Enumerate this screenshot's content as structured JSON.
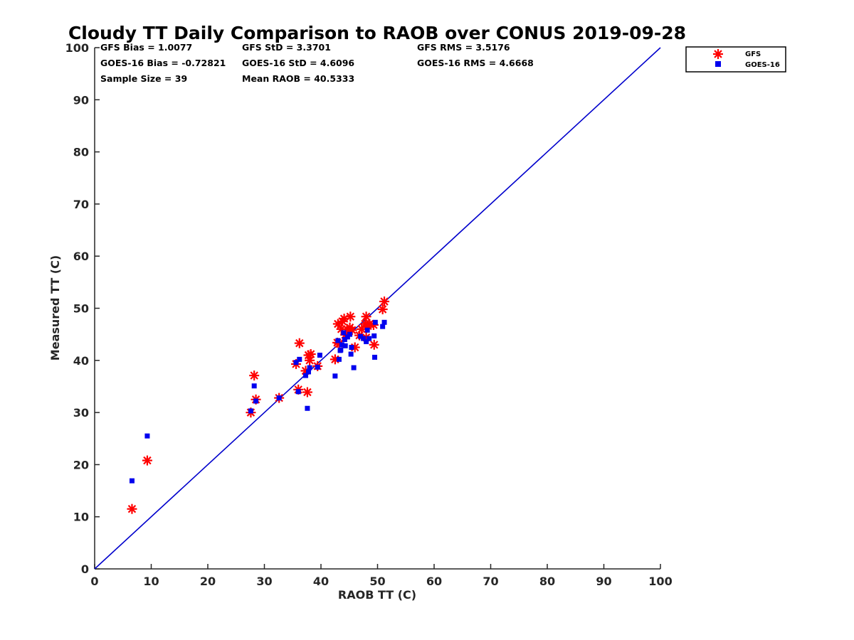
{
  "chart_data": {
    "type": "scatter",
    "title": "Cloudy TT Daily Comparison to RAOB over CONUS 2019-09-28",
    "xlabel": "RAOB TT (C)",
    "ylabel": "Measured TT (C)",
    "xlim": [
      0,
      100
    ],
    "ylim": [
      0,
      100
    ],
    "xticks": [
      "0",
      "10",
      "20",
      "30",
      "40",
      "50",
      "60",
      "70",
      "80",
      "90",
      "100"
    ],
    "yticks": [
      "0",
      "10",
      "20",
      "30",
      "40",
      "50",
      "60",
      "70",
      "80",
      "90",
      "100"
    ],
    "grid": false,
    "legend_position": "top-right outside plot",
    "reference_line": {
      "from": [
        0,
        0
      ],
      "to": [
        100,
        100
      ],
      "color": "#0000cc"
    },
    "stats": [
      [
        "GFS Bias = 1.0077",
        "GFS StD = 3.3701",
        "GFS RMS = 3.5176"
      ],
      [
        "GOES-16 Bias = -0.72821",
        "GOES-16 StD = 4.6096",
        "GOES-16 RMS = 4.6668"
      ],
      [
        "Sample Size = 39",
        "Mean RAOB = 40.5333",
        ""
      ]
    ],
    "series": [
      {
        "name": "GFS",
        "marker": "asterisk",
        "color": "#ff0000",
        "points": [
          [
            6.6,
            11.5
          ],
          [
            9.3,
            20.8
          ],
          [
            27.6,
            30.0
          ],
          [
            28.2,
            37.1
          ],
          [
            28.5,
            32.5
          ],
          [
            32.6,
            32.8
          ],
          [
            35.6,
            39.3
          ],
          [
            36.0,
            34.4
          ],
          [
            36.2,
            43.3
          ],
          [
            37.3,
            38.0
          ],
          [
            37.6,
            33.9
          ],
          [
            37.8,
            41.0
          ],
          [
            38.0,
            40.0
          ],
          [
            38.2,
            41.2
          ],
          [
            39.4,
            38.9
          ],
          [
            42.5,
            40.2
          ],
          [
            43.0,
            47.0
          ],
          [
            43.2,
            43.2
          ],
          [
            43.6,
            46.0
          ],
          [
            43.8,
            47.5
          ],
          [
            44.1,
            48.0
          ],
          [
            44.6,
            46.0
          ],
          [
            45.1,
            46.3
          ],
          [
            45.2,
            48.4
          ],
          [
            45.5,
            45.8
          ],
          [
            46.0,
            42.5
          ],
          [
            47.2,
            46.0
          ],
          [
            47.8,
            47.0
          ],
          [
            48.0,
            48.4
          ],
          [
            48.3,
            46.6
          ],
          [
            48.6,
            47.0
          ],
          [
            49.3,
            46.8
          ],
          [
            49.4,
            43.0
          ],
          [
            50.9,
            49.8
          ],
          [
            51.2,
            51.3
          ],
          [
            44.3,
            44.9
          ],
          [
            42.9,
            43.4
          ],
          [
            46.8,
            44.8
          ],
          [
            48.0,
            44.4
          ]
        ]
      },
      {
        "name": "GOES-16",
        "marker": "square",
        "color": "#0000ee",
        "points": [
          [
            6.6,
            16.9
          ],
          [
            9.3,
            25.5
          ],
          [
            27.6,
            30.3
          ],
          [
            28.2,
            35.1
          ],
          [
            28.5,
            32.2
          ],
          [
            32.6,
            32.8
          ],
          [
            35.6,
            39.6
          ],
          [
            36.0,
            34.0
          ],
          [
            36.2,
            40.2
          ],
          [
            37.3,
            37.1
          ],
          [
            37.6,
            30.8
          ],
          [
            37.8,
            37.8
          ],
          [
            38.0,
            38.6
          ],
          [
            39.4,
            38.7
          ],
          [
            39.8,
            41.0
          ],
          [
            42.5,
            37.0
          ],
          [
            43.0,
            43.8
          ],
          [
            43.2,
            40.2
          ],
          [
            43.5,
            42.0
          ],
          [
            43.7,
            43.0
          ],
          [
            44.0,
            45.3
          ],
          [
            44.2,
            44.0
          ],
          [
            44.7,
            44.5
          ],
          [
            45.1,
            45.0
          ],
          [
            45.3,
            41.2
          ],
          [
            45.4,
            42.5
          ],
          [
            45.8,
            38.6
          ],
          [
            47.0,
            44.6
          ],
          [
            47.5,
            44.2
          ],
          [
            48.0,
            43.6
          ],
          [
            48.2,
            45.8
          ],
          [
            48.5,
            44.2
          ],
          [
            49.4,
            44.7
          ],
          [
            49.5,
            40.6
          ],
          [
            49.6,
            47.3
          ],
          [
            50.9,
            46.5
          ],
          [
            51.2,
            47.3
          ],
          [
            44.3,
            42.8
          ],
          [
            43.4,
            41.9
          ]
        ]
      }
    ]
  }
}
